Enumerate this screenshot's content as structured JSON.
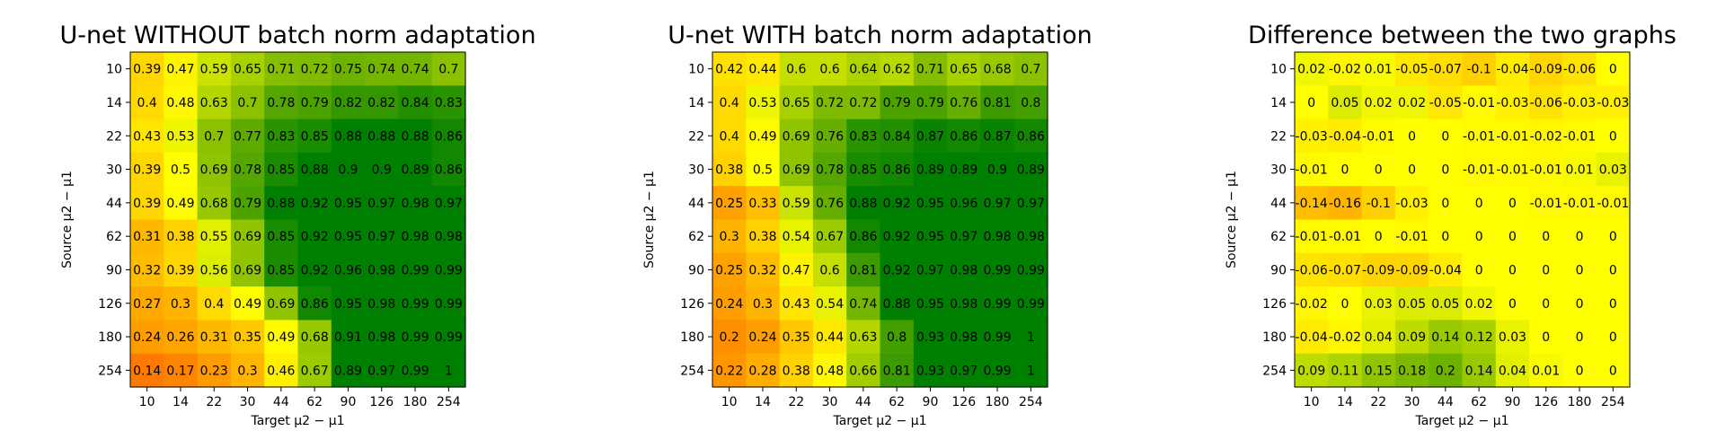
{
  "chart_data": [
    {
      "type": "heatmap",
      "title": "U-net WITHOUT batch norm adaptation",
      "xlabel": "Target μ2 − μ1",
      "ylabel": "Source μ2 − μ1",
      "x": [
        "10",
        "14",
        "22",
        "30",
        "44",
        "62",
        "90",
        "126",
        "180",
        "254"
      ],
      "y": [
        "10",
        "14",
        "22",
        "30",
        "44",
        "62",
        "90",
        "126",
        "180",
        "254"
      ],
      "values": [
        [
          0.39,
          0.47,
          0.59,
          0.65,
          0.71,
          0.72,
          0.75,
          0.74,
          0.74,
          0.7
        ],
        [
          0.4,
          0.48,
          0.63,
          0.7,
          0.78,
          0.79,
          0.82,
          0.82,
          0.84,
          0.83
        ],
        [
          0.43,
          0.53,
          0.7,
          0.77,
          0.83,
          0.85,
          0.88,
          0.88,
          0.88,
          0.86
        ],
        [
          0.39,
          0.5,
          0.69,
          0.78,
          0.85,
          0.88,
          0.9,
          0.9,
          0.89,
          0.86
        ],
        [
          0.39,
          0.49,
          0.68,
          0.79,
          0.88,
          0.92,
          0.95,
          0.97,
          0.98,
          0.97
        ],
        [
          0.31,
          0.38,
          0.55,
          0.69,
          0.85,
          0.92,
          0.95,
          0.97,
          0.98,
          0.98
        ],
        [
          0.32,
          0.39,
          0.56,
          0.69,
          0.85,
          0.92,
          0.96,
          0.98,
          0.99,
          0.99
        ],
        [
          0.27,
          0.3,
          0.4,
          0.49,
          0.69,
          0.86,
          0.95,
          0.98,
          0.99,
          0.99
        ],
        [
          0.24,
          0.26,
          0.31,
          0.35,
          0.49,
          0.68,
          0.91,
          0.98,
          0.99,
          0.99
        ],
        [
          0.14,
          0.17,
          0.23,
          0.3,
          0.46,
          0.67,
          0.89,
          0.97,
          0.99,
          1.0
        ]
      ],
      "color_range": [
        0.0,
        1.0
      ],
      "colormap": "autumn-to-green"
    },
    {
      "type": "heatmap",
      "title": "U-net WITH batch norm adaptation",
      "xlabel": "Target μ2 − μ1",
      "ylabel": "Source μ2 − μ1",
      "x": [
        "10",
        "14",
        "22",
        "30",
        "44",
        "62",
        "90",
        "126",
        "180",
        "254"
      ],
      "y": [
        "10",
        "14",
        "22",
        "30",
        "44",
        "62",
        "90",
        "126",
        "180",
        "254"
      ],
      "values": [
        [
          0.42,
          0.44,
          0.6,
          0.6,
          0.64,
          0.62,
          0.71,
          0.65,
          0.68,
          0.7
        ],
        [
          0.4,
          0.53,
          0.65,
          0.72,
          0.72,
          0.79,
          0.79,
          0.76,
          0.81,
          0.8
        ],
        [
          0.4,
          0.49,
          0.69,
          0.76,
          0.83,
          0.84,
          0.87,
          0.86,
          0.87,
          0.86
        ],
        [
          0.38,
          0.5,
          0.69,
          0.78,
          0.85,
          0.86,
          0.89,
          0.89,
          0.9,
          0.89
        ],
        [
          0.25,
          0.33,
          0.59,
          0.76,
          0.88,
          0.92,
          0.95,
          0.96,
          0.97,
          0.97
        ],
        [
          0.3,
          0.38,
          0.54,
          0.67,
          0.86,
          0.92,
          0.95,
          0.97,
          0.98,
          0.98
        ],
        [
          0.25,
          0.32,
          0.47,
          0.6,
          0.81,
          0.92,
          0.97,
          0.98,
          0.99,
          0.99
        ],
        [
          0.24,
          0.3,
          0.43,
          0.54,
          0.74,
          0.88,
          0.95,
          0.98,
          0.99,
          0.99
        ],
        [
          0.2,
          0.24,
          0.35,
          0.44,
          0.63,
          0.8,
          0.93,
          0.98,
          0.99,
          1.0
        ],
        [
          0.22,
          0.28,
          0.38,
          0.48,
          0.66,
          0.81,
          0.93,
          0.97,
          0.99,
          1.0
        ]
      ],
      "color_range": [
        0.0,
        1.0
      ],
      "colormap": "autumn-to-green"
    },
    {
      "type": "heatmap",
      "title": "Difference between the two graphs",
      "xlabel": "Target μ2 − μ1",
      "ylabel": "Source μ2 − μ1",
      "x": [
        "10",
        "14",
        "22",
        "30",
        "44",
        "62",
        "90",
        "126",
        "180",
        "254"
      ],
      "y": [
        "10",
        "14",
        "22",
        "30",
        "44",
        "62",
        "90",
        "126",
        "180",
        "254"
      ],
      "values": [
        [
          0.02,
          -0.02,
          0.01,
          -0.05,
          -0.07,
          -0.1,
          -0.04,
          -0.09,
          -0.06,
          -0.0
        ],
        [
          -0.0,
          0.05,
          0.02,
          0.02,
          -0.05,
          -0.01,
          -0.03,
          -0.06,
          -0.03,
          -0.03
        ],
        [
          -0.03,
          -0.04,
          -0.01,
          -0.0,
          0.0,
          -0.01,
          -0.01,
          -0.02,
          -0.01,
          0.0
        ],
        [
          -0.01,
          -0.0,
          -0.0,
          -0.0,
          -0.0,
          -0.01,
          -0.01,
          -0.01,
          0.01,
          0.03
        ],
        [
          -0.14,
          -0.16,
          -0.1,
          -0.03,
          0.0,
          0.0,
          -0.0,
          -0.01,
          -0.01,
          -0.01
        ],
        [
          -0.01,
          -0.01,
          -0.0,
          -0.01,
          0.0,
          0.0,
          0.0,
          -0.0,
          0.0,
          0.0
        ],
        [
          -0.06,
          -0.07,
          -0.09,
          -0.09,
          -0.04,
          -0.0,
          0.0,
          -0.0,
          -0.0,
          0.0
        ],
        [
          -0.02,
          0.0,
          0.03,
          0.05,
          0.05,
          0.02,
          0.0,
          0.0,
          0.0,
          0.0
        ],
        [
          -0.04,
          -0.02,
          0.04,
          0.09,
          0.14,
          0.12,
          0.03,
          0.0,
          -0.0,
          0.0
        ],
        [
          0.09,
          0.11,
          0.15,
          0.18,
          0.2,
          0.14,
          0.04,
          0.01,
          0.0,
          0.0
        ]
      ],
      "color_range": [
        -0.4,
        0.4
      ],
      "colormap": "autumn-to-green"
    }
  ]
}
